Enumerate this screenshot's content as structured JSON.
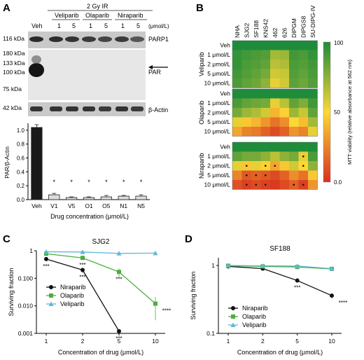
{
  "panels": {
    "A": {
      "letter": "A",
      "condition": "2 Gy IR",
      "drug_groups": [
        "Veliparib",
        "Olaparib",
        "Niraparib"
      ],
      "lane_doses": [
        "Veh",
        "1",
        "5",
        "1",
        "5",
        "1",
        "5"
      ],
      "unit": "(μmol/L)",
      "ladder": [
        "116 kDa",
        "180 kDa",
        "133 kDa",
        "100 kDa",
        "75 kDa",
        "42 kDa"
      ],
      "blot_labels": [
        "PARP1",
        "PAR",
        "β-Actin"
      ]
    },
    "B": {
      "letter": "B",
      "colorbar_label": "MTT viability (relative absorbance at 562 nm)",
      "colorbar_ticks": [
        "100",
        "50",
        "0.0"
      ]
    },
    "C": {
      "letter": "C"
    },
    "D": {
      "letter": "D"
    }
  },
  "chart_data": [
    {
      "id": "A-bar",
      "type": "bar",
      "ylabel": "PAR/β-Actin",
      "xlabel": "Drug concentration (μmol/L)",
      "categories": [
        "Veh",
        "V1",
        "V5",
        "O1",
        "O5",
        "N1",
        "N5"
      ],
      "values": [
        1.04,
        0.07,
        0.03,
        0.03,
        0.04,
        0.05,
        0.05
      ],
      "errors": [
        0.04,
        0.02,
        0.01,
        0.01,
        0.02,
        0.01,
        0.02
      ],
      "yticks": [
        "0.0",
        "0.2",
        "0.4",
        "0.6",
        "0.8",
        "1.0"
      ],
      "ylim": [
        0,
        1.1
      ],
      "significance": [
        "",
        "*",
        "*",
        "*",
        "*",
        "*",
        "*"
      ],
      "colors": [
        "#1a1a1a",
        "#dcdcdc",
        "#dcdcdc",
        "#dcdcdc",
        "#dcdcdc",
        "#dcdcdc",
        "#dcdcdc"
      ]
    },
    {
      "id": "B-heatmap",
      "type": "heatmap",
      "columns": [
        "NHA",
        "SJG2",
        "SF188",
        "KNS42",
        "462",
        "626",
        "DIPGM",
        "DIPGS8",
        "SU-DIPG-IV"
      ],
      "zlim": [
        0,
        100
      ],
      "colorscale": [
        "#d7301f",
        "#fdd835",
        "#1e8c3a"
      ],
      "groups": [
        {
          "name": "Veliparib",
          "rows": [
            "Veh",
            "1 μmol/L",
            "2 μmol/L",
            "5 μmol/L",
            "10 μmol/L"
          ],
          "values": [
            [
              100,
              100,
              100,
              100,
              100,
              100,
              100,
              100,
              100
            ],
            [
              95,
              92,
              90,
              88,
              70,
              72,
              92,
              90,
              95
            ],
            [
              95,
              90,
              88,
              85,
              65,
              68,
              90,
              88,
              92
            ],
            [
              92,
              88,
              85,
              80,
              60,
              62,
              88,
              85,
              90
            ],
            [
              90,
              85,
              82,
              75,
              55,
              60,
              86,
              82,
              88
            ]
          ],
          "marks": []
        },
        {
          "name": "Olaparib",
          "rows": [
            "Veh",
            "1 μmol/L",
            "2 μmol/L",
            "5 μmol/L",
            "10 μmol/L"
          ],
          "values": [
            [
              100,
              100,
              100,
              100,
              100,
              100,
              100,
              100,
              100
            ],
            [
              90,
              85,
              82,
              80,
              55,
              65,
              85,
              78,
              92
            ],
            [
              80,
              72,
              68,
              60,
              40,
              48,
              72,
              62,
              85
            ],
            [
              55,
              45,
              40,
              30,
              20,
              28,
              50,
              42,
              70
            ],
            [
              35,
              25,
              22,
              15,
              8,
              15,
              30,
              25,
              55
            ]
          ],
          "marks": []
        },
        {
          "name": "Niraparib",
          "rows": [
            "Veh",
            "1 μmol/L",
            "2 μmol/L",
            "5 μmol/L",
            "10 μmol/L"
          ],
          "values": [
            [
              100,
              100,
              100,
              100,
              100,
              100,
              100,
              100,
              100
            ],
            [
              85,
              80,
              80,
              75,
              65,
              75,
              80,
              55,
              90
            ],
            [
              55,
              45,
              55,
              48,
              35,
              45,
              60,
              50,
              75
            ],
            [
              25,
              12,
              15,
              12,
              8,
              15,
              28,
              20,
              45
            ],
            [
              10,
              5,
              8,
              5,
              3,
              8,
              15,
              5,
              30
            ]
          ],
          "marks": [
            [
              1,
              7
            ],
            [
              2,
              1
            ],
            [
              2,
              3
            ],
            [
              2,
              4
            ],
            [
              2,
              7
            ],
            [
              3,
              1
            ],
            [
              3,
              2
            ],
            [
              3,
              3
            ],
            [
              4,
              1
            ],
            [
              4,
              2
            ],
            [
              4,
              3
            ],
            [
              4,
              6
            ],
            [
              4,
              7
            ]
          ]
        }
      ]
    },
    {
      "id": "C-line",
      "type": "line",
      "title": "SJG2",
      "xlabel": "Concentration of drug (μmol/L)",
      "ylabel": "Surviving fraction",
      "x": [
        "1",
        "2",
        "5",
        "10"
      ],
      "yscale": "log",
      "ylim": [
        0.001,
        1
      ],
      "yticks": [
        "0.001",
        "0.010",
        "0.100",
        "1"
      ],
      "series": [
        {
          "name": "Niraparib",
          "values": [
            0.5,
            0.2,
            0.0012,
            null
          ],
          "errors": [
            0.08,
            0.04,
            0.0002,
            null
          ],
          "color": "#111111",
          "marker": "circle"
        },
        {
          "name": "Olaparib",
          "values": [
            0.78,
            0.55,
            0.17,
            0.012
          ],
          "errors": [
            0.06,
            0.08,
            0.06,
            0.009
          ],
          "color": "#4caf3c",
          "marker": "square"
        },
        {
          "name": "Veliparib",
          "values": [
            0.92,
            0.9,
            0.8,
            0.82
          ],
          "errors": [
            0.04,
            0.04,
            0.04,
            0.04
          ],
          "color": "#5fb8d8",
          "marker": "triangle"
        }
      ],
      "annotations": [
        {
          "x": "1",
          "text": "***"
        },
        {
          "x": "2",
          "text": "***"
        },
        {
          "x": "2",
          "text": "***"
        },
        {
          "x": "5",
          "text": "***"
        },
        {
          "x": "5",
          "text": "***"
        },
        {
          "x": "10",
          "text": "****"
        }
      ]
    },
    {
      "id": "D-line",
      "type": "line",
      "title": "SF188",
      "xlabel": "Concentration of drug (μmol/L)",
      "ylabel": "Surviving fraction",
      "x": [
        "1",
        "2",
        "5",
        "10"
      ],
      "yscale": "log",
      "ylim": [
        0.1,
        1.3
      ],
      "yticks": [
        "0.1",
        "1"
      ],
      "series": [
        {
          "name": "Niraparib",
          "values": [
            0.97,
            0.9,
            0.6,
            0.36
          ],
          "errors": [
            0.03,
            0.03,
            0.02,
            0.03
          ],
          "color": "#111111",
          "marker": "circle"
        },
        {
          "name": "Olaparib",
          "values": [
            0.99,
            0.97,
            0.95,
            0.89
          ],
          "errors": [
            0.03,
            0.03,
            0.03,
            0.02
          ],
          "color": "#4caf3c",
          "marker": "square"
        },
        {
          "name": "Veliparib",
          "values": [
            1.0,
            0.99,
            0.98,
            0.9
          ],
          "errors": [
            0.03,
            0.03,
            0.03,
            0.02
          ],
          "color": "#5fb8d8",
          "marker": "triangle"
        }
      ],
      "annotations": [
        {
          "x": "5",
          "text": "***"
        },
        {
          "x": "10",
          "text": "****"
        }
      ]
    }
  ]
}
